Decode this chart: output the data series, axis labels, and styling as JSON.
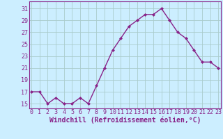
{
  "x": [
    0,
    1,
    2,
    3,
    4,
    5,
    6,
    7,
    8,
    9,
    10,
    11,
    12,
    13,
    14,
    15,
    16,
    17,
    18,
    19,
    20,
    21,
    22,
    23
  ],
  "y": [
    17,
    17,
    15,
    16,
    15,
    15,
    16,
    15,
    18,
    21,
    24,
    26,
    28,
    29,
    30,
    30,
    31,
    29,
    27,
    26,
    24,
    22,
    22,
    21
  ],
  "line_color": "#882288",
  "marker": "D",
  "marker_size": 2.0,
  "bg_color": "#cceeff",
  "grid_color": "#aacccc",
  "xlabel": "Windchill (Refroidissement éolien,°C)",
  "xlabel_color": "#882288",
  "xlabel_fontsize": 7,
  "yticks": [
    15,
    17,
    19,
    21,
    23,
    25,
    27,
    29,
    31
  ],
  "xticks": [
    0,
    1,
    2,
    3,
    4,
    5,
    6,
    7,
    8,
    9,
    10,
    11,
    12,
    13,
    14,
    15,
    16,
    17,
    18,
    19,
    20,
    21,
    22,
    23
  ],
  "xlim": [
    -0.3,
    23.3
  ],
  "ylim": [
    14.2,
    32.2
  ],
  "tick_fontsize": 6,
  "tick_color": "#882288",
  "spine_color": "#882288",
  "linewidth": 1.0
}
